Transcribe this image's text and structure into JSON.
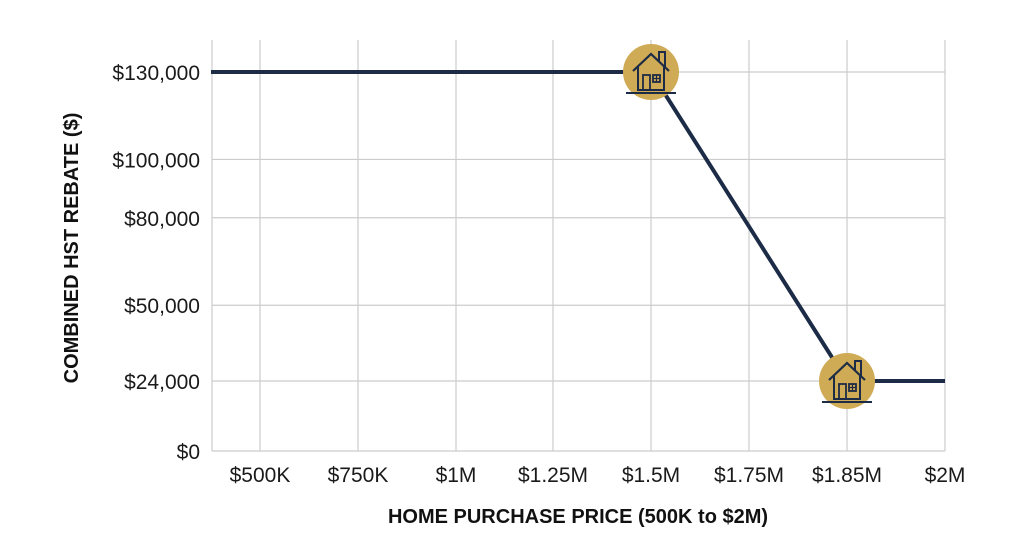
{
  "chart_data": {
    "type": "line",
    "title": "",
    "xlabel": "HOME PURCHASE PRICE (500K to $2M)",
    "ylabel": "COMBINED HST REBATE ($)",
    "x_ticks": [
      {
        "value": 500000,
        "label": "$500K"
      },
      {
        "value": 750000,
        "label": "$750K"
      },
      {
        "value": 1000000,
        "label": "$1M"
      },
      {
        "value": 1250000,
        "label": "$1.25M"
      },
      {
        "value": 1500000,
        "label": "$1.5M"
      },
      {
        "value": 1750000,
        "label": "$1.75M"
      },
      {
        "value": 1850000,
        "label": "$1.85M"
      },
      {
        "value": 2000000,
        "label": "$2M"
      }
    ],
    "y_ticks": [
      {
        "value": 0,
        "label": "$0"
      },
      {
        "value": 24000,
        "label": "$24,000"
      },
      {
        "value": 50000,
        "label": "$50,000"
      },
      {
        "value": 80000,
        "label": "$80,000"
      },
      {
        "value": 100000,
        "label": "$100,000"
      },
      {
        "value": 130000,
        "label": "$130,000"
      }
    ],
    "series": [
      {
        "x": [
          375000,
          1500000,
          1850000,
          2000000
        ],
        "y": [
          130000,
          130000,
          24000,
          24000
        ]
      }
    ],
    "markers": [
      {
        "x": 1500000,
        "y": 130000,
        "icon": "house-icon"
      },
      {
        "x": 1850000,
        "y": 24000,
        "icon": "house-icon"
      }
    ],
    "xlim": [
      375000,
      2000000
    ],
    "ylim": [
      0,
      130000
    ],
    "grid": true,
    "legend": "none",
    "colors": {
      "line": "#1c2b46",
      "marker_fill": "#cfab55",
      "icon": "#1c2b46"
    }
  }
}
